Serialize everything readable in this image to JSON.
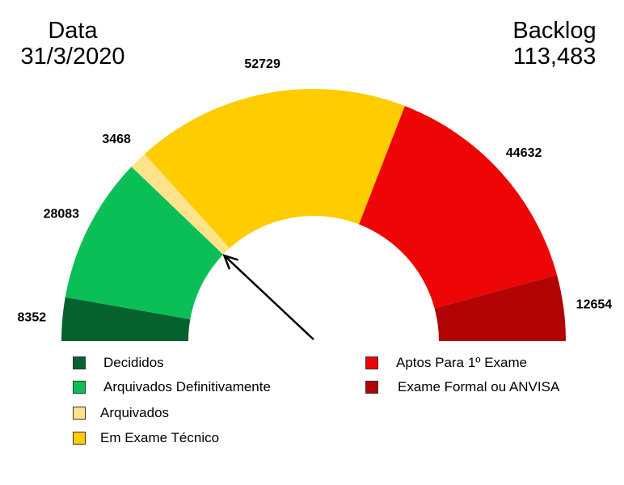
{
  "header": {
    "date_label": "Data",
    "date_value": "31/3/2020",
    "backlog_label": "Backlog",
    "backlog_value": "113,483"
  },
  "chart_data": {
    "type": "pie",
    "subtype": "half-donut",
    "categories": [
      "Decididos",
      "Arquivados Definitivamente",
      "Arquivados",
      "Em Exame Técnico",
      "Aptos Para 1º Exame",
      "Exame Formal ou ANVISA"
    ],
    "values": [
      8352,
      28083,
      3468,
      52729,
      44632,
      12654
    ],
    "data_labels": [
      "8352",
      "28083",
      "3468",
      "52729",
      "44632",
      "12654"
    ],
    "colors": [
      "#05622f",
      "#0abf55",
      "#ffe38a",
      "#ffcc00",
      "#ee0505",
      "#b20404"
    ],
    "legend": "bottom",
    "annotation": "arrow pointing to boundary between Arquivados Definitivamente and Arquivados"
  }
}
